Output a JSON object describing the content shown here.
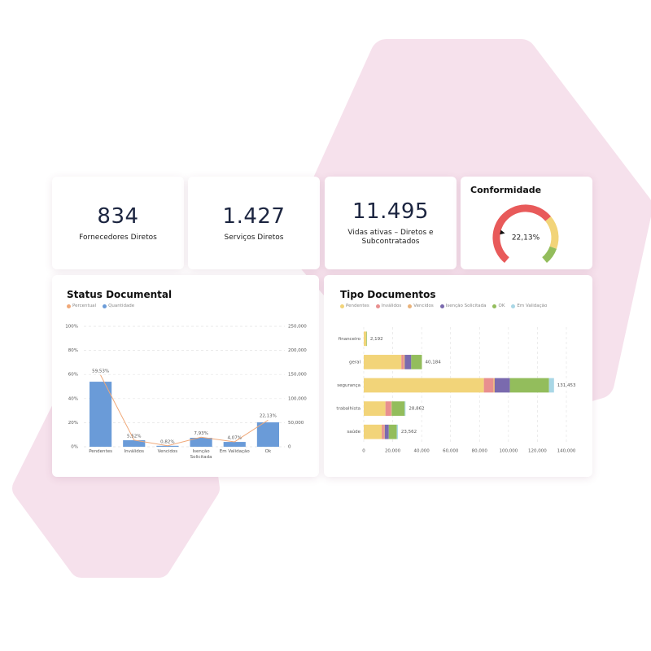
{
  "kpis": [
    {
      "value": "834",
      "label": "Fornecedores Diretos"
    },
    {
      "value": "1.427",
      "label": "Serviços Diretos"
    },
    {
      "value": "11.495",
      "label": "Vidas ativas – Diretos e Subcontratados"
    }
  ],
  "gauge": {
    "title": "Conformidade",
    "value": 22.13,
    "value_label": "22,13%"
  },
  "chart_data": [
    {
      "type": "bar_line",
      "title": "Status Documental",
      "legend": "top-left",
      "grid": true,
      "categories": [
        "Pendentes",
        "Inválidos",
        "Vencidos",
        "Isenção Solicitada",
        "Em Validação",
        "Ok"
      ],
      "series": [
        {
          "name": "Percentual",
          "color": "#f0a878",
          "type": "line",
          "values": [
            59.53,
            5.52,
            0.82,
            7.93,
            4.07,
            22.13
          ],
          "value_labels": [
            "59,53%",
            "5,52%",
            "0,82%",
            "7,93%",
            "4,07%",
            "22,13%"
          ]
        },
        {
          "name": "Quantidade",
          "color": "#6a9bd8",
          "type": "bar",
          "axis": "y2",
          "values": [
            135000,
            13500,
            2000,
            18600,
            10000,
            50700
          ]
        }
      ],
      "ylim": [
        0,
        100
      ],
      "yticks": [
        {
          "value": 0,
          "label": "0%"
        },
        {
          "value": 20,
          "label": "20%"
        },
        {
          "value": 40,
          "label": "40%"
        },
        {
          "value": 60,
          "label": "60%"
        },
        {
          "value": 80,
          "label": "80%"
        },
        {
          "value": 100,
          "label": "100%"
        }
      ],
      "y2lim": [
        0,
        250000
      ],
      "y2ticks": [
        0,
        {
          "value": 50000,
          "label": "50,000"
        },
        {
          "value": 100000,
          "label": "100,000"
        },
        {
          "value": 150000,
          "label": "150,000"
        },
        {
          "value": 200000,
          "label": "200,000"
        },
        {
          "value": 250000,
          "label": "250,000"
        }
      ]
    },
    {
      "type": "stacked_barh",
      "title": "Tipo Documentos",
      "legend": "top-left",
      "grid": true,
      "categories": [
        "financeiro",
        "geral",
        "segurança",
        "trabalhista",
        "saúde"
      ],
      "series": [
        {
          "name": "Pendentes",
          "color": "#f2d479",
          "values": [
            1800,
            26000,
            83000,
            15000,
            12500
          ]
        },
        {
          "name": "Inválidos",
          "color": "#e88f8f",
          "values": [
            0,
            1500,
            6500,
            4000,
            1500
          ]
        },
        {
          "name": "Vencidos",
          "color": "#e9b27a",
          "values": [
            0,
            800,
            1000,
            300,
            500
          ]
        },
        {
          "name": "Isenção Solicitada",
          "color": "#7a6aae",
          "values": [
            0,
            4500,
            10500,
            0,
            2800
          ]
        },
        {
          "name": "OK",
          "color": "#93bd5c",
          "values": [
            392,
            7384,
            27000,
            9000,
            5500
          ]
        },
        {
          "name": "Em Validação",
          "color": "#a9d7e6",
          "values": [
            0,
            0,
            3453,
            562,
            762
          ]
        }
      ],
      "total_labels": [
        "2,192",
        "40,184",
        "131,453",
        "28,862",
        "23,562"
      ],
      "xlim": [
        0,
        140000
      ],
      "xticks": [
        0,
        {
          "value": 20000,
          "label": "20,000"
        },
        {
          "value": 40000,
          "label": "40,000"
        },
        {
          "value": 60000,
          "label": "60,000"
        },
        {
          "value": 80000,
          "label": "80,000"
        },
        {
          "value": 100000,
          "label": "100,000"
        },
        {
          "value": 120000,
          "label": "120,000"
        },
        {
          "value": 140000,
          "label": "140,000"
        }
      ]
    }
  ]
}
